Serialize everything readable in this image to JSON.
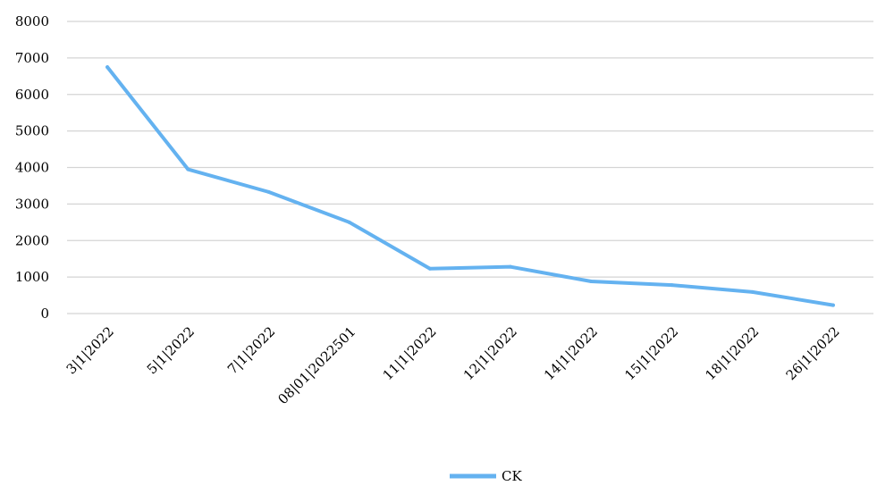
{
  "chart_data": {
    "type": "line",
    "title": "",
    "xlabel": "",
    "ylabel": "",
    "x": [
      "3|1|2022",
      "5|1|2022",
      "7|1|2022",
      "08|01|2022501",
      "11|1|2022",
      "12|1|2022",
      "14|1|2022",
      "15|1|2022",
      "18|1|2022",
      "26|1|2022"
    ],
    "series": [
      {
        "name": "CK",
        "values": [
          6750,
          3950,
          3330,
          2500,
          1230,
          1280,
          880,
          780,
          590,
          230
        ]
      }
    ],
    "ylim": [
      0,
      8000
    ],
    "yticks": [
      0,
      1000,
      2000,
      3000,
      4000,
      5000,
      6000,
      7000,
      8000
    ],
    "grid": true,
    "legend_position": "bottom",
    "colors": {
      "line": "#64b2f0",
      "grid": "#d4d4d4"
    }
  }
}
